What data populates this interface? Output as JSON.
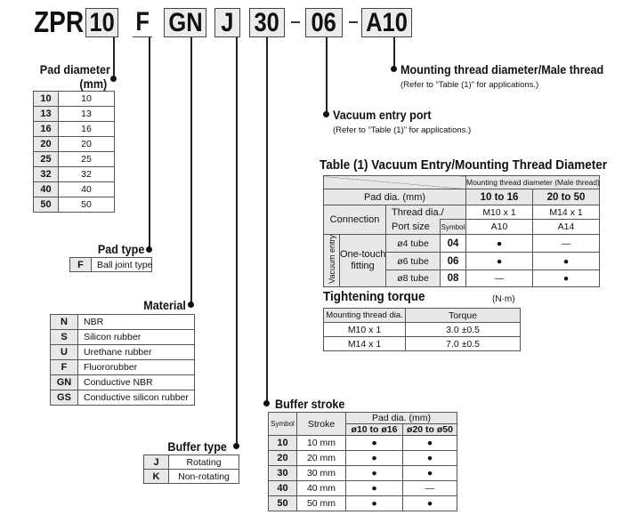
{
  "code": {
    "prefix": "ZPR",
    "segments": [
      "10",
      "F",
      "GN",
      "J",
      "30",
      "06",
      "A10"
    ],
    "separator": "-"
  },
  "mounting": {
    "label": "Mounting thread diameter/Male thread",
    "note": "(Refer to “Table (1)” for applications.)"
  },
  "vacuum": {
    "label": "Vacuum entry port",
    "note": "(Refer to “Table (1)” for applications.)"
  },
  "pad_diameter": {
    "label": "Pad diameter",
    "unit": "(mm)",
    "rows": [
      [
        "10",
        "10"
      ],
      [
        "13",
        "13"
      ],
      [
        "16",
        "16"
      ],
      [
        "20",
        "20"
      ],
      [
        "25",
        "25"
      ],
      [
        "32",
        "32"
      ],
      [
        "40",
        "40"
      ],
      [
        "50",
        "50"
      ]
    ]
  },
  "pad_type": {
    "label": "Pad type",
    "rows": [
      [
        "F",
        "Ball joint type"
      ]
    ]
  },
  "material": {
    "label": "Material",
    "rows": [
      [
        "N",
        "NBR"
      ],
      [
        "S",
        "Silicon rubber"
      ],
      [
        "U",
        "Urethane rubber"
      ],
      [
        "F",
        "Fluororubber"
      ],
      [
        "GN",
        "Conductive NBR"
      ],
      [
        "GS",
        "Conductive silicon rubber"
      ]
    ]
  },
  "buffer_type": {
    "label": "Buffer type",
    "rows": [
      [
        "J",
        "Rotating"
      ],
      [
        "K",
        "Non-rotating"
      ]
    ]
  },
  "table1": {
    "title": "Table (1) Vacuum Entry/Mounting Thread Diameter",
    "mount_header": "Mounting thread diameter (Male thread)",
    "pad_dia": "Pad dia. (mm)",
    "ranges": [
      "10 to 16",
      "20 to 50"
    ],
    "connection": "Connection",
    "thread_line1": "Thread dia./",
    "thread_line2": "Port size",
    "symbol": "Symbol",
    "threads": [
      "M10 x 1",
      "M14 x 1"
    ],
    "thread_symbols": [
      "A10",
      "A14"
    ],
    "vacuum_entry": "Vacuum entry",
    "fitting_line1": "One-touch",
    "fitting_line2": "fitting",
    "rows": [
      {
        "tube": "ø4 tube",
        "sym": "04",
        "a": "●",
        "b": "—"
      },
      {
        "tube": "ø6 tube",
        "sym": "06",
        "a": "●",
        "b": "●"
      },
      {
        "tube": "ø8 tube",
        "sym": "08",
        "a": "—",
        "b": "●"
      }
    ]
  },
  "torque": {
    "title": "Tightening torque",
    "unit": "(N·m)",
    "headers": [
      "Mounting thread dia.",
      "Torque"
    ],
    "rows": [
      [
        "M10 x 1",
        "3.0 ±0.5"
      ],
      [
        "M14 x 1",
        "7.0 ±0.5"
      ]
    ]
  },
  "buffer_stroke": {
    "label": "Buffer stroke",
    "headers": {
      "symbol": "Symbol",
      "stroke": "Stroke",
      "pad_dia": "Pad dia. (mm)",
      "ranges": [
        "ø10 to ø16",
        "ø20 to ø50"
      ]
    },
    "rows": [
      [
        "10",
        "10 mm",
        "●",
        "●"
      ],
      [
        "20",
        "20 mm",
        "●",
        "●"
      ],
      [
        "30",
        "30 mm",
        "●",
        "●"
      ],
      [
        "40",
        "40 mm",
        "●",
        "—"
      ],
      [
        "50",
        "50 mm",
        "●",
        "●"
      ]
    ]
  }
}
